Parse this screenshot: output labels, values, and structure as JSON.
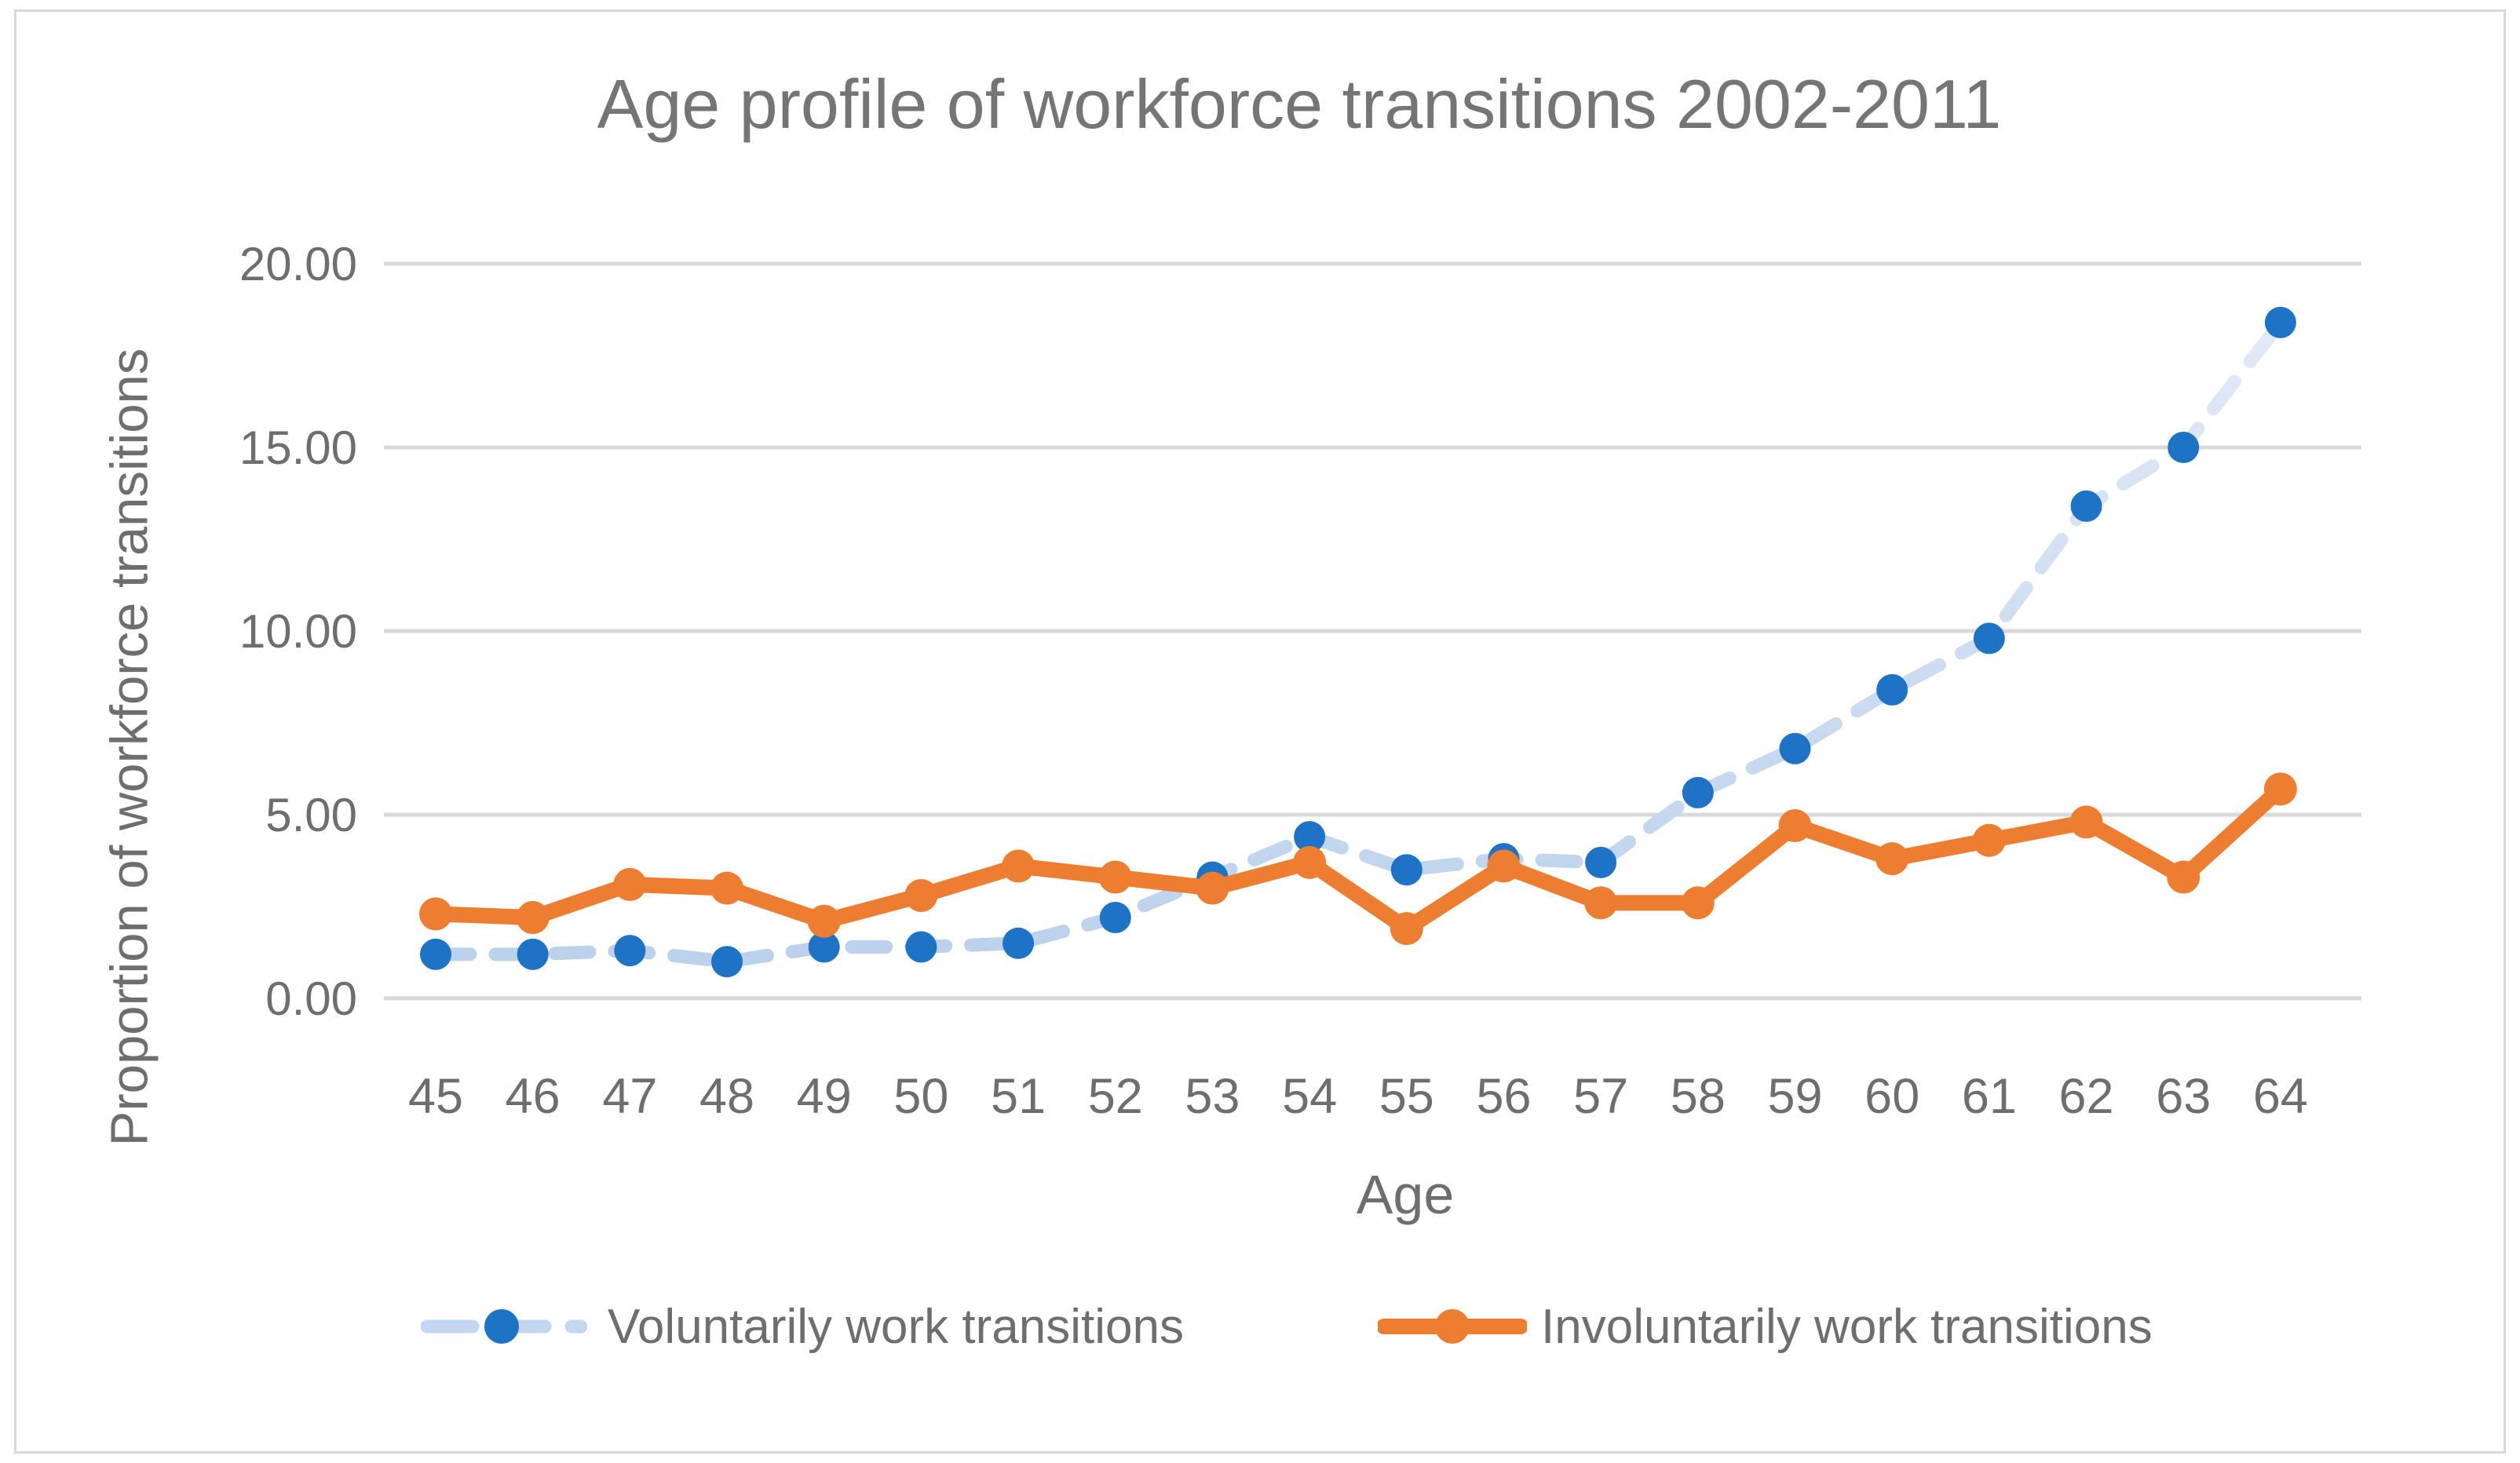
{
  "window": {
    "background_color": "#FFFFFF",
    "frame_color": "#D8D8D8"
  },
  "chart": {
    "title": "Age profile of workforce transitions 2002-2011",
    "y_axis_title": "Proportion of workforce transitions",
    "x_axis_title": "Age"
  },
  "chart_data": {
    "type": "line",
    "title": "Age profile of workforce transitions 2002-2011",
    "xlabel": "Age",
    "ylabel": "Proportion of workforce transitions",
    "x": [
      45,
      46,
      47,
      48,
      49,
      50,
      51,
      52,
      53,
      54,
      55,
      56,
      57,
      58,
      59,
      60,
      61,
      62,
      63,
      64
    ],
    "ylim": [
      0,
      20
    ],
    "yticks": [
      0,
      5,
      10,
      15,
      20
    ],
    "ytick_labels": [
      "0.00",
      "5.00",
      "10.00",
      "15.00",
      "20.00"
    ],
    "grid": true,
    "gridline_color": "#D9D9D9",
    "text_color": "#6E6E6E",
    "legend_position": "bottom",
    "series": [
      {
        "name": "Voluntarily work transitions",
        "line_style": "dashed",
        "line_color": "#C3D7F0",
        "line_gradient_top": "#E6ECF8",
        "line_gradient_bottom": "#B9D0EB",
        "marker_color": "#1E73C6",
        "values": [
          1.2,
          1.2,
          1.3,
          1.0,
          1.4,
          1.4,
          1.5,
          2.2,
          3.3,
          4.4,
          3.5,
          3.8,
          3.7,
          5.6,
          6.8,
          8.4,
          9.8,
          13.4,
          15.0,
          18.4
        ]
      },
      {
        "name": "Involuntarily work transitions",
        "line_style": "solid",
        "line_color": "#ED7D31",
        "marker_color": "#ED7D31",
        "values": [
          2.3,
          2.2,
          3.1,
          3.0,
          2.1,
          2.8,
          3.6,
          3.3,
          3.0,
          3.7,
          1.9,
          3.6,
          2.6,
          2.6,
          4.7,
          3.8,
          4.3,
          4.8,
          3.3,
          5.7
        ]
      }
    ]
  }
}
